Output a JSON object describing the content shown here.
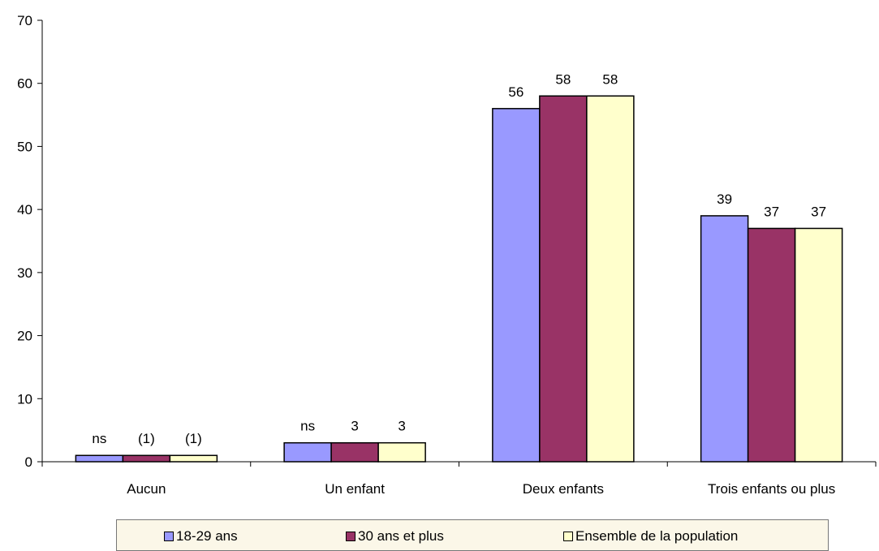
{
  "chart_data": {
    "type": "bar",
    "categories": [
      "Aucun",
      "Un enfant",
      "Deux enfants",
      "Trois enfants ou plus"
    ],
    "series": [
      {
        "name": "18-29 ans",
        "color": "#9999ff",
        "values": [
          1,
          3,
          56,
          39
        ],
        "labels": [
          "ns",
          "ns",
          "56",
          "39"
        ]
      },
      {
        "name": "30 ans et plus",
        "color": "#993366",
        "values": [
          1,
          3,
          58,
          37
        ],
        "labels": [
          "(1)",
          "3",
          "58",
          "37"
        ]
      },
      {
        "name": "Ensemble de la population",
        "color": "#ffffcc",
        "values": [
          1,
          3,
          58,
          37
        ],
        "labels": [
          "(1)",
          "3",
          "58",
          "37"
        ]
      }
    ],
    "ylim": [
      0,
      70
    ],
    "yticks": [
      "0",
      "10",
      "20",
      "30",
      "40",
      "50",
      "60",
      "70"
    ],
    "title": "",
    "xlabel": "",
    "ylabel": "",
    "grid": false,
    "legend_position": "bottom"
  },
  "legend": {
    "items": [
      "18-29 ans",
      "30 ans et plus",
      "Ensemble de la population"
    ]
  }
}
